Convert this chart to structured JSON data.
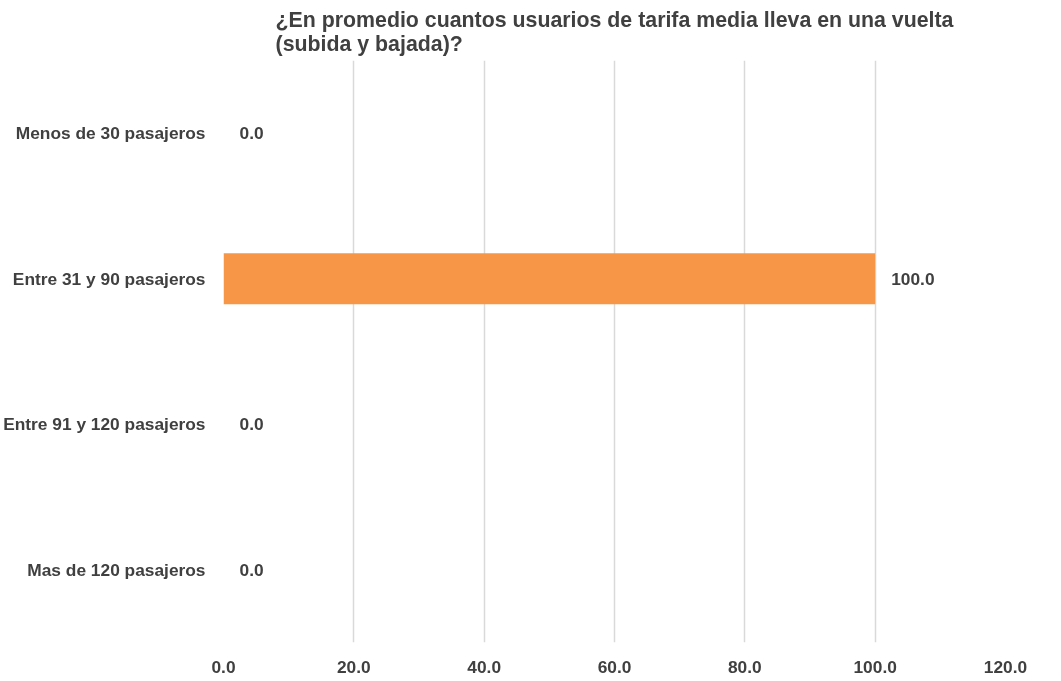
{
  "chart_data": {
    "type": "bar",
    "orientation": "horizontal",
    "title": "¿En promedio cuantos usuarios de tarifa media lleva en una vuelta (subida y bajada)?",
    "categories": [
      "Menos de 30 pasajeros",
      "Entre 31 y 90 pasajeros",
      "Entre 91 y 120 pasajeros",
      "Mas de 120 pasajeros"
    ],
    "values": [
      0,
      100,
      0,
      0
    ],
    "value_labels": [
      "0.0",
      "100.0",
      "0.0",
      "0.0"
    ],
    "color": "#f79646",
    "xlim": [
      0,
      120
    ],
    "xticks": [
      {
        "value": 0,
        "label": "0.0"
      },
      {
        "value": 20,
        "label": "20.0"
      },
      {
        "value": 40,
        "label": "40.0"
      },
      {
        "value": 60,
        "label": "60.0"
      },
      {
        "value": 80,
        "label": "80.0"
      },
      {
        "value": 100,
        "label": "100.0"
      },
      {
        "value": 120,
        "label": "120.0"
      }
    ],
    "grid": "x"
  }
}
